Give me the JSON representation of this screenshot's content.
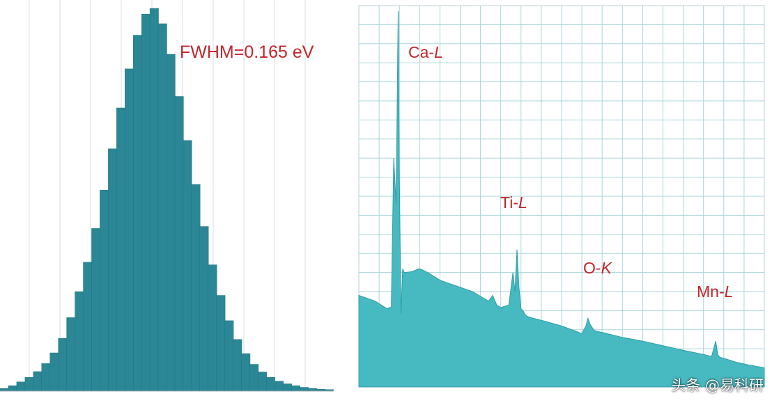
{
  "colors": {
    "hist_fill": "#2b8795",
    "hist_edge": "#1f6f7c",
    "spec_fill": "#47b9c1",
    "spec_edge": "#2f9ea8",
    "grid": "#a9d6db",
    "annotation": "#c0272d",
    "panel_bg": "#ffffff"
  },
  "chart_data": [
    {
      "type": "bar",
      "panel": "left",
      "title": "",
      "annotations": [
        {
          "text": "FWHM=0.165 eV"
        }
      ],
      "grid": true,
      "ylim": [
        0,
        1
      ],
      "values": [
        0.007,
        0.014,
        0.024,
        0.036,
        0.051,
        0.072,
        0.1,
        0.138,
        0.192,
        0.26,
        0.337,
        0.425,
        0.525,
        0.633,
        0.74,
        0.842,
        0.93,
        0.985,
        1.0,
        0.96,
        0.88,
        0.77,
        0.655,
        0.54,
        0.43,
        0.33,
        0.25,
        0.184,
        0.135,
        0.098,
        0.07,
        0.05,
        0.036,
        0.026,
        0.019,
        0.014,
        0.01,
        0.007,
        0.005,
        0.004
      ]
    },
    {
      "type": "area",
      "panel": "right",
      "title": "",
      "grid": true,
      "ylim": [
        0,
        1
      ],
      "xlim": [
        0,
        1
      ],
      "x": [
        0.0,
        0.04,
        0.07,
        0.08,
        0.086,
        0.092,
        0.097,
        0.1,
        0.104,
        0.108,
        0.112,
        0.13,
        0.15,
        0.17,
        0.2,
        0.24,
        0.28,
        0.32,
        0.33,
        0.34,
        0.35,
        0.37,
        0.38,
        0.385,
        0.39,
        0.395,
        0.4,
        0.405,
        0.41,
        0.415,
        0.43,
        0.46,
        0.5,
        0.53,
        0.55,
        0.56,
        0.565,
        0.57,
        0.58,
        0.59,
        0.6,
        0.65,
        0.7,
        0.75,
        0.8,
        0.85,
        0.87,
        0.88,
        0.885,
        0.89,
        0.9,
        0.93,
        0.96,
        1.0
      ],
      "y": [
        0.24,
        0.225,
        0.205,
        0.21,
        0.6,
        0.48,
        0.985,
        0.55,
        0.19,
        0.31,
        0.3,
        0.302,
        0.31,
        0.3,
        0.28,
        0.265,
        0.25,
        0.225,
        0.24,
        0.215,
        0.208,
        0.215,
        0.3,
        0.25,
        0.36,
        0.26,
        0.205,
        0.2,
        0.19,
        0.185,
        0.18,
        0.172,
        0.16,
        0.148,
        0.14,
        0.16,
        0.18,
        0.165,
        0.148,
        0.145,
        0.143,
        0.13,
        0.12,
        0.108,
        0.096,
        0.085,
        0.08,
        0.12,
        0.085,
        0.078,
        0.075,
        0.065,
        0.058,
        0.05
      ],
      "annotations": [
        {
          "text": "Ca-",
          "italic": "L"
        },
        {
          "text": "Ti-",
          "italic": "L"
        },
        {
          "text": "O-",
          "italic": "K"
        },
        {
          "text": "Mn-",
          "italic": "L"
        }
      ]
    }
  ],
  "watermark": "头条 @易科研"
}
